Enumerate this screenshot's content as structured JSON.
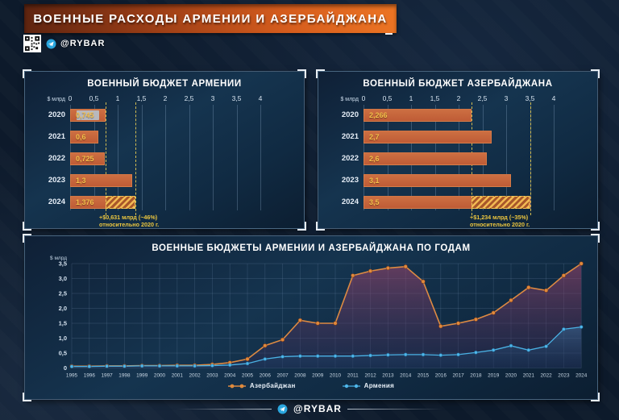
{
  "header": {
    "title": "ВОЕННЫЕ РАСХОДЫ АРМЕНИИ И АЗЕРБАЙДЖАНА",
    "handle": "@RYBAR"
  },
  "footer": {
    "handle": "@RYBAR"
  },
  "colors": {
    "background": "#0d1a2b",
    "header_orange": "#e2661f",
    "bar_fill": "#c5633a",
    "value_label": "#f6c04a",
    "dashed_reference": "#ddc453",
    "annotation": "#ecc63f",
    "azerbaijan_line": "#e0823c",
    "armenia_line": "#4db3e6"
  },
  "icons": {
    "qr": "qr-code",
    "telegram": "telegram-paper-plane"
  },
  "chart_data": [
    {
      "type": "bar",
      "orientation": "horizontal",
      "title": "ВОЕННЫЙ БЮДЖЕТ АРМЕНИИ",
      "xlabel": "$ млрд",
      "xlim": [
        0,
        4
      ],
      "axis_ticks": [
        "0",
        "0,5",
        "1",
        "1,5",
        "2",
        "2,5",
        "3",
        "3,5",
        "4"
      ],
      "categories": [
        "2020",
        "2021",
        "2022",
        "2023",
        "2024"
      ],
      "values": [
        0.745,
        0.6,
        0.725,
        1.3,
        1.376
      ],
      "value_labels": [
        "0,745",
        "0,6",
        "0,725",
        "1,3",
        "1,376"
      ],
      "highlight_row": "2020",
      "reference_lines": [
        0.745,
        1.376
      ],
      "hatch": {
        "row": "2024",
        "from": 0.745,
        "to": 1.376
      },
      "annotation": [
        "+$0,631 млрд (~46%)",
        "относительно 2020 г."
      ]
    },
    {
      "type": "bar",
      "orientation": "horizontal",
      "title": "ВОЕННЫЙ БЮДЖЕТ АЗЕРБАЙДЖАНА",
      "xlabel": "$ млрд",
      "xlim": [
        0,
        4
      ],
      "axis_ticks": [
        "0",
        "0,5",
        "1",
        "1,5",
        "2",
        "2,5",
        "3",
        "3,5",
        "4"
      ],
      "categories": [
        "2020",
        "2021",
        "2022",
        "2023",
        "2024"
      ],
      "values": [
        2.266,
        2.7,
        2.6,
        3.1,
        3.5
      ],
      "value_labels": [
        "2,266",
        "2,7",
        "2,6",
        "3,1",
        "3,5"
      ],
      "reference_lines": [
        2.266,
        3.5
      ],
      "hatch": {
        "row": "2024",
        "from": 2.266,
        "to": 3.5
      },
      "annotation": [
        "+$1,234 млрд (~35%)",
        "относительно 2020 г."
      ]
    },
    {
      "type": "line",
      "title": "ВОЕННЫЕ БЮДЖЕТЫ АРМЕНИИ И АЗЕРБАЙДЖАНА ПО ГОДАМ",
      "ylabel": "$ млрд",
      "ylim": [
        0,
        3.5
      ],
      "grid": true,
      "legend_position": "bottom",
      "yticks_labels": [
        "3,5",
        "3,0",
        "2,5",
        "2,0",
        "1,5",
        "1,0",
        "0,5",
        "0"
      ],
      "x": [
        1995,
        1996,
        1997,
        1998,
        1999,
        2000,
        2001,
        2002,
        2003,
        2004,
        2005,
        2006,
        2007,
        2008,
        2009,
        2010,
        2011,
        2012,
        2013,
        2014,
        2015,
        2016,
        2017,
        2018,
        2019,
        2020,
        2021,
        2022,
        2023,
        2024
      ],
      "series": [
        {
          "name": "Азербайджан",
          "color": "#e0823c",
          "values": [
            0.06,
            0.06,
            0.07,
            0.07,
            0.08,
            0.08,
            0.09,
            0.09,
            0.12,
            0.18,
            0.3,
            0.75,
            0.95,
            1.6,
            1.5,
            1.5,
            3.1,
            3.25,
            3.35,
            3.4,
            2.9,
            1.4,
            1.5,
            1.63,
            1.85,
            2.27,
            2.7,
            2.6,
            3.1,
            3.5
          ]
        },
        {
          "name": "Армения",
          "color": "#4db3e6",
          "values": [
            0.05,
            0.05,
            0.06,
            0.06,
            0.07,
            0.07,
            0.07,
            0.07,
            0.08,
            0.1,
            0.15,
            0.3,
            0.38,
            0.4,
            0.4,
            0.4,
            0.4,
            0.42,
            0.44,
            0.45,
            0.45,
            0.43,
            0.45,
            0.52,
            0.6,
            0.745,
            0.6,
            0.725,
            1.3,
            1.376
          ]
        }
      ]
    }
  ]
}
